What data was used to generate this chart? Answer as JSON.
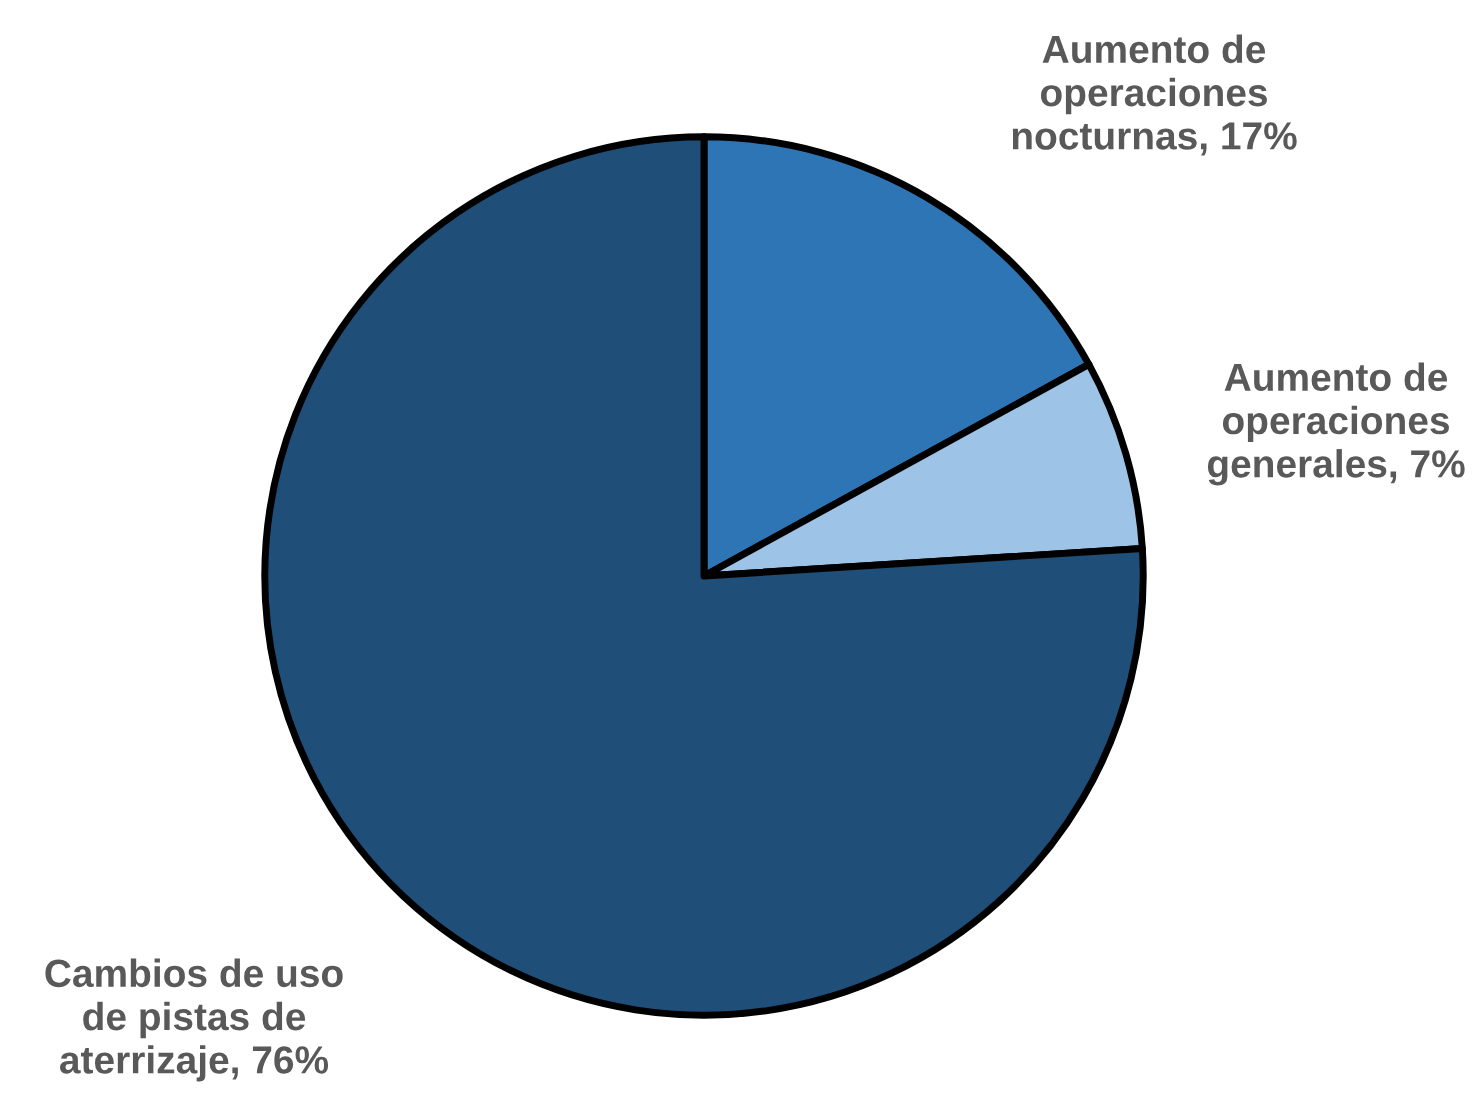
{
  "chart_data": {
    "type": "pie",
    "categories": [
      "Aumento de\noperaciones\nnocturnas",
      "Aumento de\noperaciones\ngenerales",
      "Cambios de uso\nde pistas de\naterrizaje"
    ],
    "values": [
      17,
      7,
      76
    ],
    "value_labels": [
      "17%",
      "7%",
      "76%"
    ],
    "colors": [
      "#2e75b6",
      "#9dc3e6",
      "#1f4e79"
    ],
    "legend": false
  }
}
